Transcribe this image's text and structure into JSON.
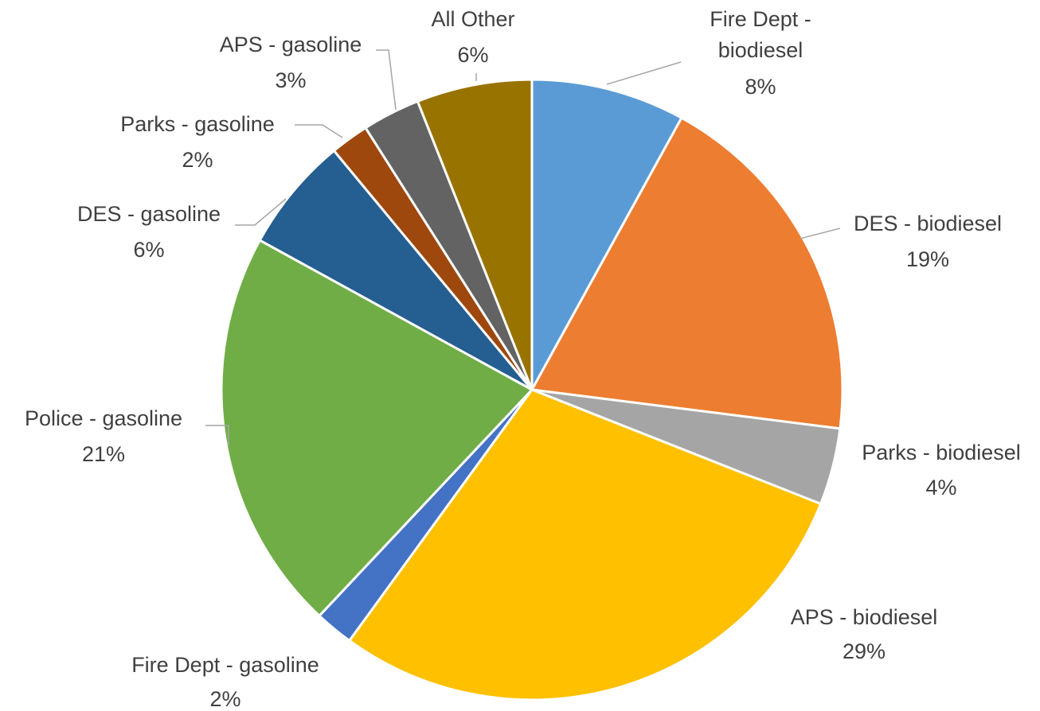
{
  "chart_data": {
    "type": "pie",
    "title": "",
    "slices": [
      {
        "name": "Fire Dept - biodiesel",
        "line1": "Fire Dept -",
        "line2": "biodiesel",
        "pct_label": "8%",
        "value": 8,
        "color": "#5B9BD5"
      },
      {
        "name": "DES - biodiesel",
        "line1": "DES - biodiesel",
        "line2": "",
        "pct_label": "19%",
        "value": 19,
        "color": "#ED7D31"
      },
      {
        "name": "Parks - biodiesel",
        "line1": "Parks - biodiesel",
        "line2": "",
        "pct_label": "4%",
        "value": 4,
        "color": "#A5A5A5"
      },
      {
        "name": "APS - biodiesel",
        "line1": "APS - biodiesel",
        "line2": "",
        "pct_label": "29%",
        "value": 29,
        "color": "#FFC000"
      },
      {
        "name": "Fire Dept - gasoline",
        "line1": "Fire Dept - gasoline",
        "line2": "",
        "pct_label": "2%",
        "value": 2,
        "color": "#4472C4"
      },
      {
        "name": "Police - gasoline",
        "line1": "Police - gasoline",
        "line2": "",
        "pct_label": "21%",
        "value": 21,
        "color": "#70AD47"
      },
      {
        "name": "DES - gasoline",
        "line1": "DES - gasoline",
        "line2": "",
        "pct_label": "6%",
        "value": 6,
        "color": "#255E91"
      },
      {
        "name": "Parks - gasoline",
        "line1": "Parks - gasoline",
        "line2": "",
        "pct_label": "2%",
        "value": 2,
        "color": "#9E480E"
      },
      {
        "name": "APS - gasoline",
        "line1": "APS - gasoline",
        "line2": "",
        "pct_label": "3%",
        "value": 3,
        "color": "#636363"
      },
      {
        "name": "All Other",
        "line1": "All Other",
        "line2": "",
        "pct_label": "6%",
        "value": 6,
        "color": "#997300"
      }
    ]
  }
}
